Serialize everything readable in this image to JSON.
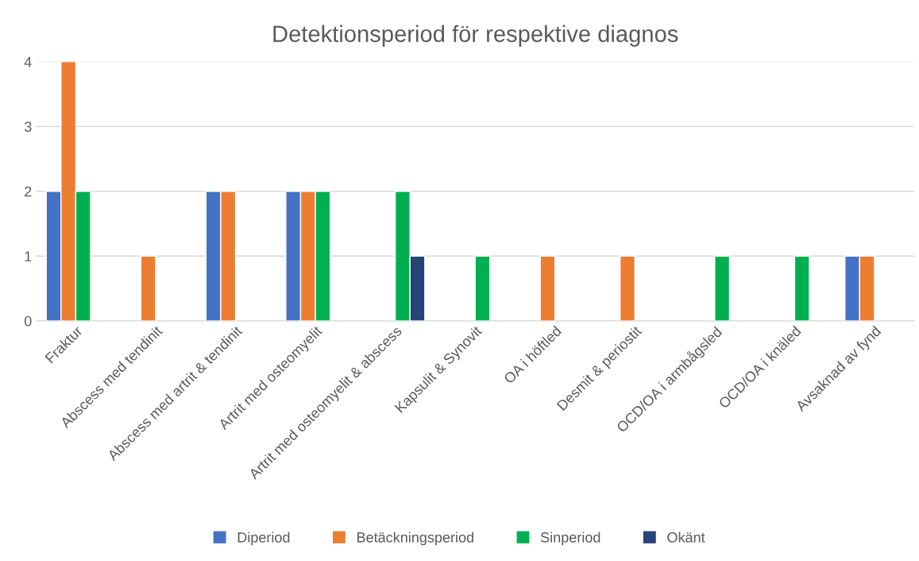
{
  "chart_data": {
    "type": "bar",
    "title": "Detektionsperiod för respektive diagnos",
    "categories": [
      "Fraktur",
      "Abscess med tendinit",
      "Abscess med artrit & tendinit",
      "Artrit med osteomyelit",
      "Artrit med osteomyelit & abscess",
      "Kapsulit & Synovit",
      "OA i höftled",
      "Desmit & periostit",
      "OCD/OA i armbågsled",
      "OCD/OA i knäled",
      "Avsaknad av fynd"
    ],
    "series": [
      {
        "name": "Diperiod",
        "color": "#4472c4",
        "values": [
          2,
          null,
          2,
          2,
          null,
          null,
          null,
          null,
          null,
          null,
          1
        ]
      },
      {
        "name": "Betäckningsperiod",
        "color": "#ed7d31",
        "values": [
          4,
          1,
          2,
          2,
          null,
          null,
          1,
          1,
          null,
          null,
          1
        ]
      },
      {
        "name": "Sinperiod",
        "color": "#00b050",
        "values": [
          2,
          null,
          null,
          2,
          2,
          1,
          null,
          null,
          1,
          1,
          null
        ]
      },
      {
        "name": "Okänt",
        "color": "#264478",
        "values": [
          null,
          null,
          null,
          null,
          1,
          null,
          null,
          null,
          null,
          null,
          null
        ]
      }
    ],
    "ylim": [
      0,
      4
    ],
    "yticks": [
      0,
      1,
      2,
      3,
      4
    ],
    "grid": "y",
    "legend": "bottom"
  }
}
